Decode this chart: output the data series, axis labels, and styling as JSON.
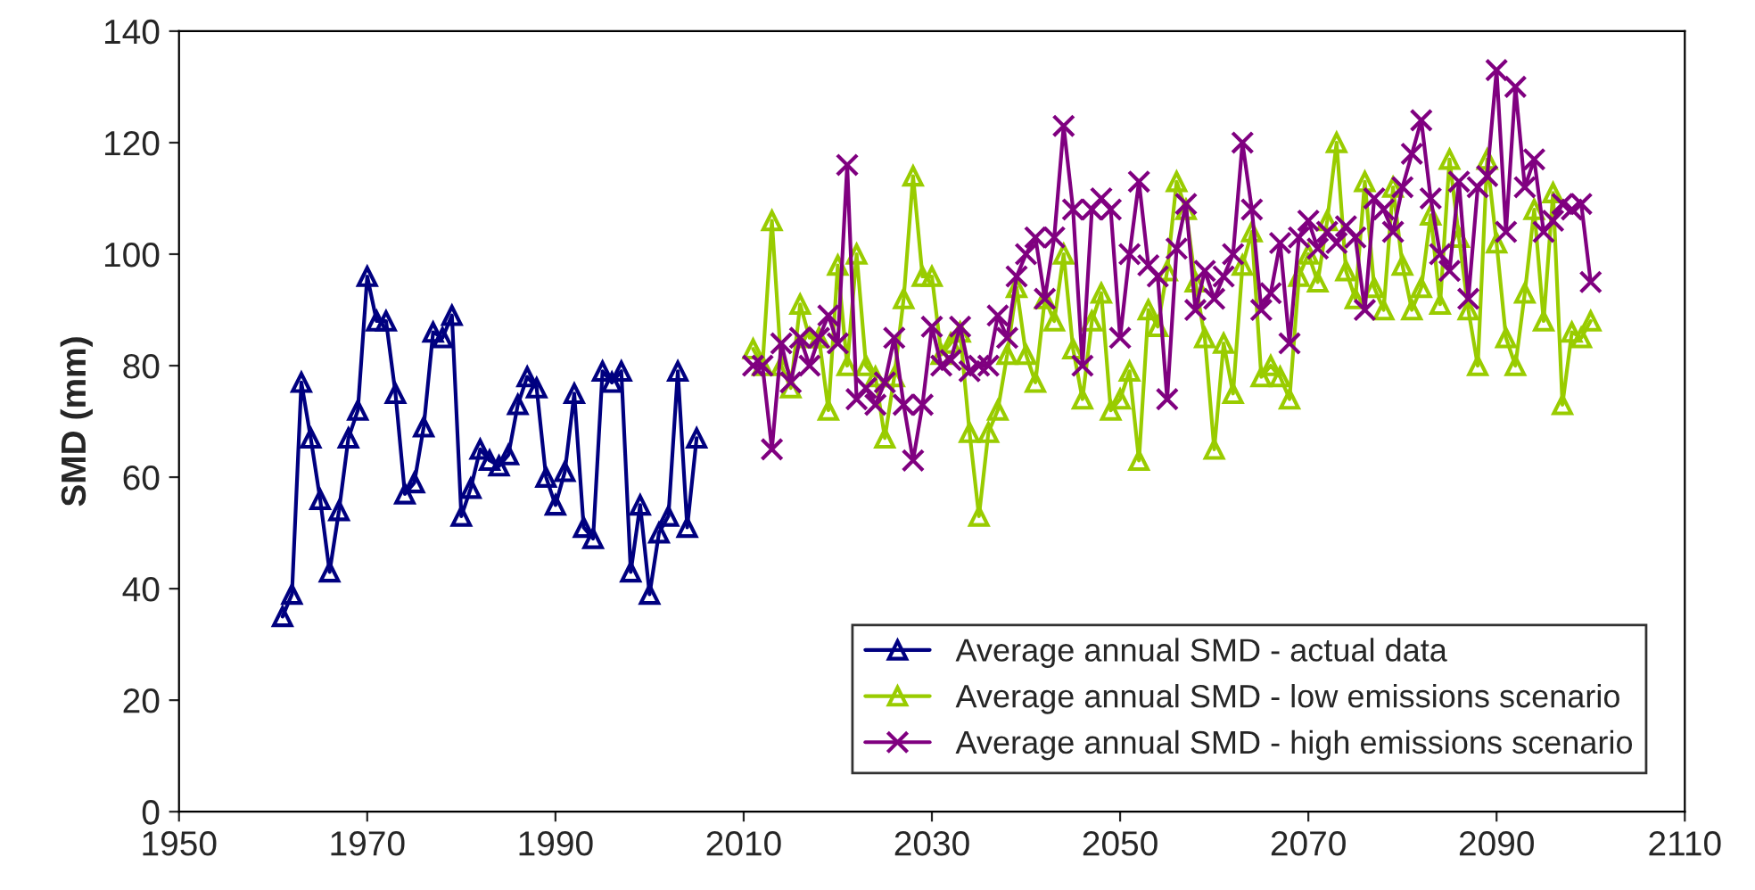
{
  "chart_data": {
    "type": "line",
    "ylabel": "SMD (mm)",
    "xlim": [
      1950,
      2110
    ],
    "xticks": [
      1950,
      1970,
      1990,
      2010,
      2030,
      2050,
      2070,
      2090,
      2110
    ],
    "ylim": [
      0,
      140
    ],
    "yticks": [
      0,
      20,
      40,
      60,
      80,
      100,
      120,
      140
    ],
    "grid": false,
    "legend": "bottom right",
    "series": [
      {
        "name": "Average annual SMD - actual data",
        "color": "#000080",
        "marker": "triangle",
        "x": [
          1961,
          1962,
          1963,
          1964,
          1965,
          1966,
          1967,
          1968,
          1969,
          1970,
          1971,
          1972,
          1973,
          1974,
          1975,
          1976,
          1977,
          1978,
          1979,
          1980,
          1981,
          1982,
          1983,
          1984,
          1985,
          1986,
          1987,
          1988,
          1989,
          1990,
          1991,
          1992,
          1993,
          1994,
          1995,
          1996,
          1997,
          1998,
          1999,
          2000,
          2001,
          2002,
          2003,
          2004,
          2005
        ],
        "values": [
          35,
          39,
          77,
          67,
          56,
          43,
          54,
          67,
          72,
          96,
          88,
          88,
          75,
          57,
          59,
          69,
          86,
          85,
          89,
          53,
          58,
          65,
          63,
          62,
          64,
          73,
          78,
          76,
          60,
          55,
          61,
          75,
          51,
          49,
          79,
          77,
          79,
          43,
          55,
          39,
          50,
          53,
          79,
          51,
          67
        ]
      },
      {
        "name": "Average annual SMD - low emissions scenario",
        "color": "#99cc00",
        "marker": "triangle",
        "x": [
          2011,
          2012,
          2013,
          2014,
          2015,
          2016,
          2017,
          2018,
          2019,
          2020,
          2021,
          2022,
          2023,
          2024,
          2025,
          2026,
          2027,
          2028,
          2029,
          2030,
          2031,
          2032,
          2033,
          2034,
          2035,
          2036,
          2037,
          2038,
          2039,
          2040,
          2041,
          2042,
          2043,
          2044,
          2045,
          2046,
          2047,
          2048,
          2049,
          2050,
          2051,
          2052,
          2053,
          2054,
          2055,
          2056,
          2057,
          2058,
          2059,
          2060,
          2061,
          2062,
          2063,
          2064,
          2065,
          2066,
          2067,
          2068,
          2069,
          2070,
          2071,
          2072,
          2073,
          2074,
          2075,
          2076,
          2077,
          2078,
          2079,
          2080,
          2081,
          2082,
          2083,
          2084,
          2085,
          2086,
          2087,
          2088,
          2089,
          2090,
          2091,
          2092,
          2093,
          2094,
          2095,
          2096,
          2097,
          2098,
          2099,
          2100
        ],
        "values": [
          83,
          80,
          106,
          80,
          76,
          91,
          85,
          85,
          72,
          98,
          80,
          100,
          80,
          78,
          67,
          78,
          92,
          114,
          96,
          96,
          82,
          84,
          86,
          68,
          53,
          68,
          72,
          82,
          94,
          82,
          77,
          92,
          88,
          100,
          83,
          74,
          88,
          93,
          72,
          74,
          79,
          63,
          90,
          87,
          97,
          113,
          108,
          95,
          85,
          65,
          84,
          75,
          98,
          104,
          78,
          80,
          78,
          74,
          96,
          100,
          95,
          106,
          120,
          97,
          92,
          113,
          94,
          90,
          112,
          98,
          90,
          94,
          107,
          91,
          117,
          103,
          90,
          80,
          117,
          102,
          85,
          80,
          93,
          108,
          88,
          111,
          73,
          86,
          85,
          88
        ]
      },
      {
        "name": "Average annual SMD - high emissions scenario",
        "color": "#800080",
        "marker": "cross",
        "x": [
          2011,
          2012,
          2013,
          2014,
          2015,
          2016,
          2017,
          2018,
          2019,
          2020,
          2021,
          2022,
          2023,
          2024,
          2025,
          2026,
          2027,
          2028,
          2029,
          2030,
          2031,
          2032,
          2033,
          2034,
          2035,
          2036,
          2037,
          2038,
          2039,
          2040,
          2041,
          2042,
          2043,
          2044,
          2045,
          2046,
          2047,
          2048,
          2049,
          2050,
          2051,
          2052,
          2053,
          2054,
          2055,
          2056,
          2057,
          2058,
          2059,
          2060,
          2061,
          2062,
          2063,
          2064,
          2065,
          2066,
          2067,
          2068,
          2069,
          2070,
          2071,
          2072,
          2073,
          2074,
          2075,
          2076,
          2077,
          2078,
          2079,
          2080,
          2081,
          2082,
          2083,
          2084,
          2085,
          2086,
          2087,
          2088,
          2089,
          2090,
          2091,
          2092,
          2093,
          2094,
          2095,
          2096,
          2097,
          2098,
          2099,
          2100
        ],
        "values": [
          80,
          80,
          65,
          84,
          77,
          85,
          80,
          85,
          89,
          84,
          116,
          74,
          76,
          73,
          77,
          85,
          73,
          63,
          73,
          87,
          80,
          81,
          87,
          79,
          80,
          80,
          89,
          85,
          96,
          100,
          103,
          92,
          103,
          123,
          108,
          80,
          108,
          110,
          108,
          85,
          100,
          113,
          98,
          96,
          74,
          101,
          109,
          90,
          97,
          92,
          96,
          100,
          120,
          108,
          90,
          93,
          102,
          84,
          103,
          106,
          101,
          104,
          102,
          105,
          103,
          90,
          110,
          108,
          104,
          112,
          118,
          124,
          110,
          100,
          97,
          113,
          92,
          112,
          114,
          133,
          104,
          130,
          112,
          117,
          104,
          106,
          109,
          108,
          109,
          95
        ]
      }
    ]
  }
}
